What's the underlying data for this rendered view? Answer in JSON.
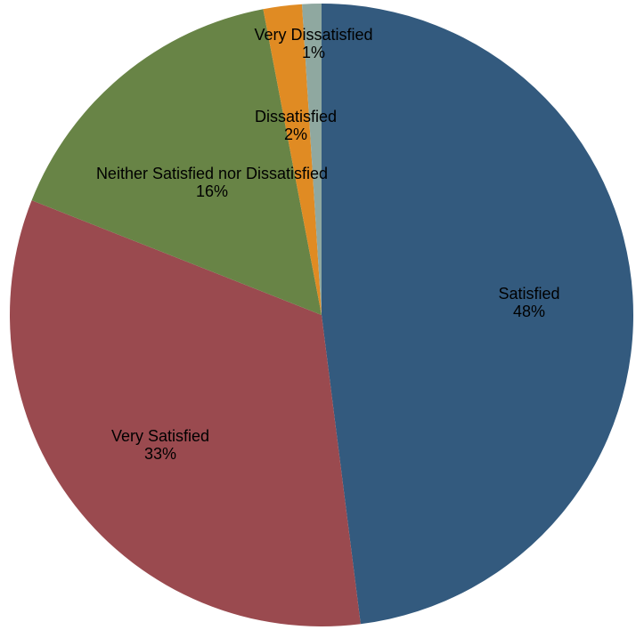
{
  "chart_data": {
    "type": "pie",
    "title": "",
    "start_angle_deg": 0,
    "direction": "clockwise",
    "slices": [
      {
        "label": "Satisfied",
        "value": 48,
        "display": "48%",
        "color": "#335A7E"
      },
      {
        "label": "Very Satisfied",
        "value": 33,
        "display": "33%",
        "color": "#9A4A4F"
      },
      {
        "label": "Neither Satisfied nor Dissatisfied",
        "value": 16,
        "display": "16%",
        "color": "#688446"
      },
      {
        "label": "Dissatisfied",
        "value": 2,
        "display": "2%",
        "color": "#E08B23"
      },
      {
        "label": "Very Dissatisfied",
        "value": 1,
        "display": "1%",
        "color": "#8FA8A0"
      }
    ]
  }
}
